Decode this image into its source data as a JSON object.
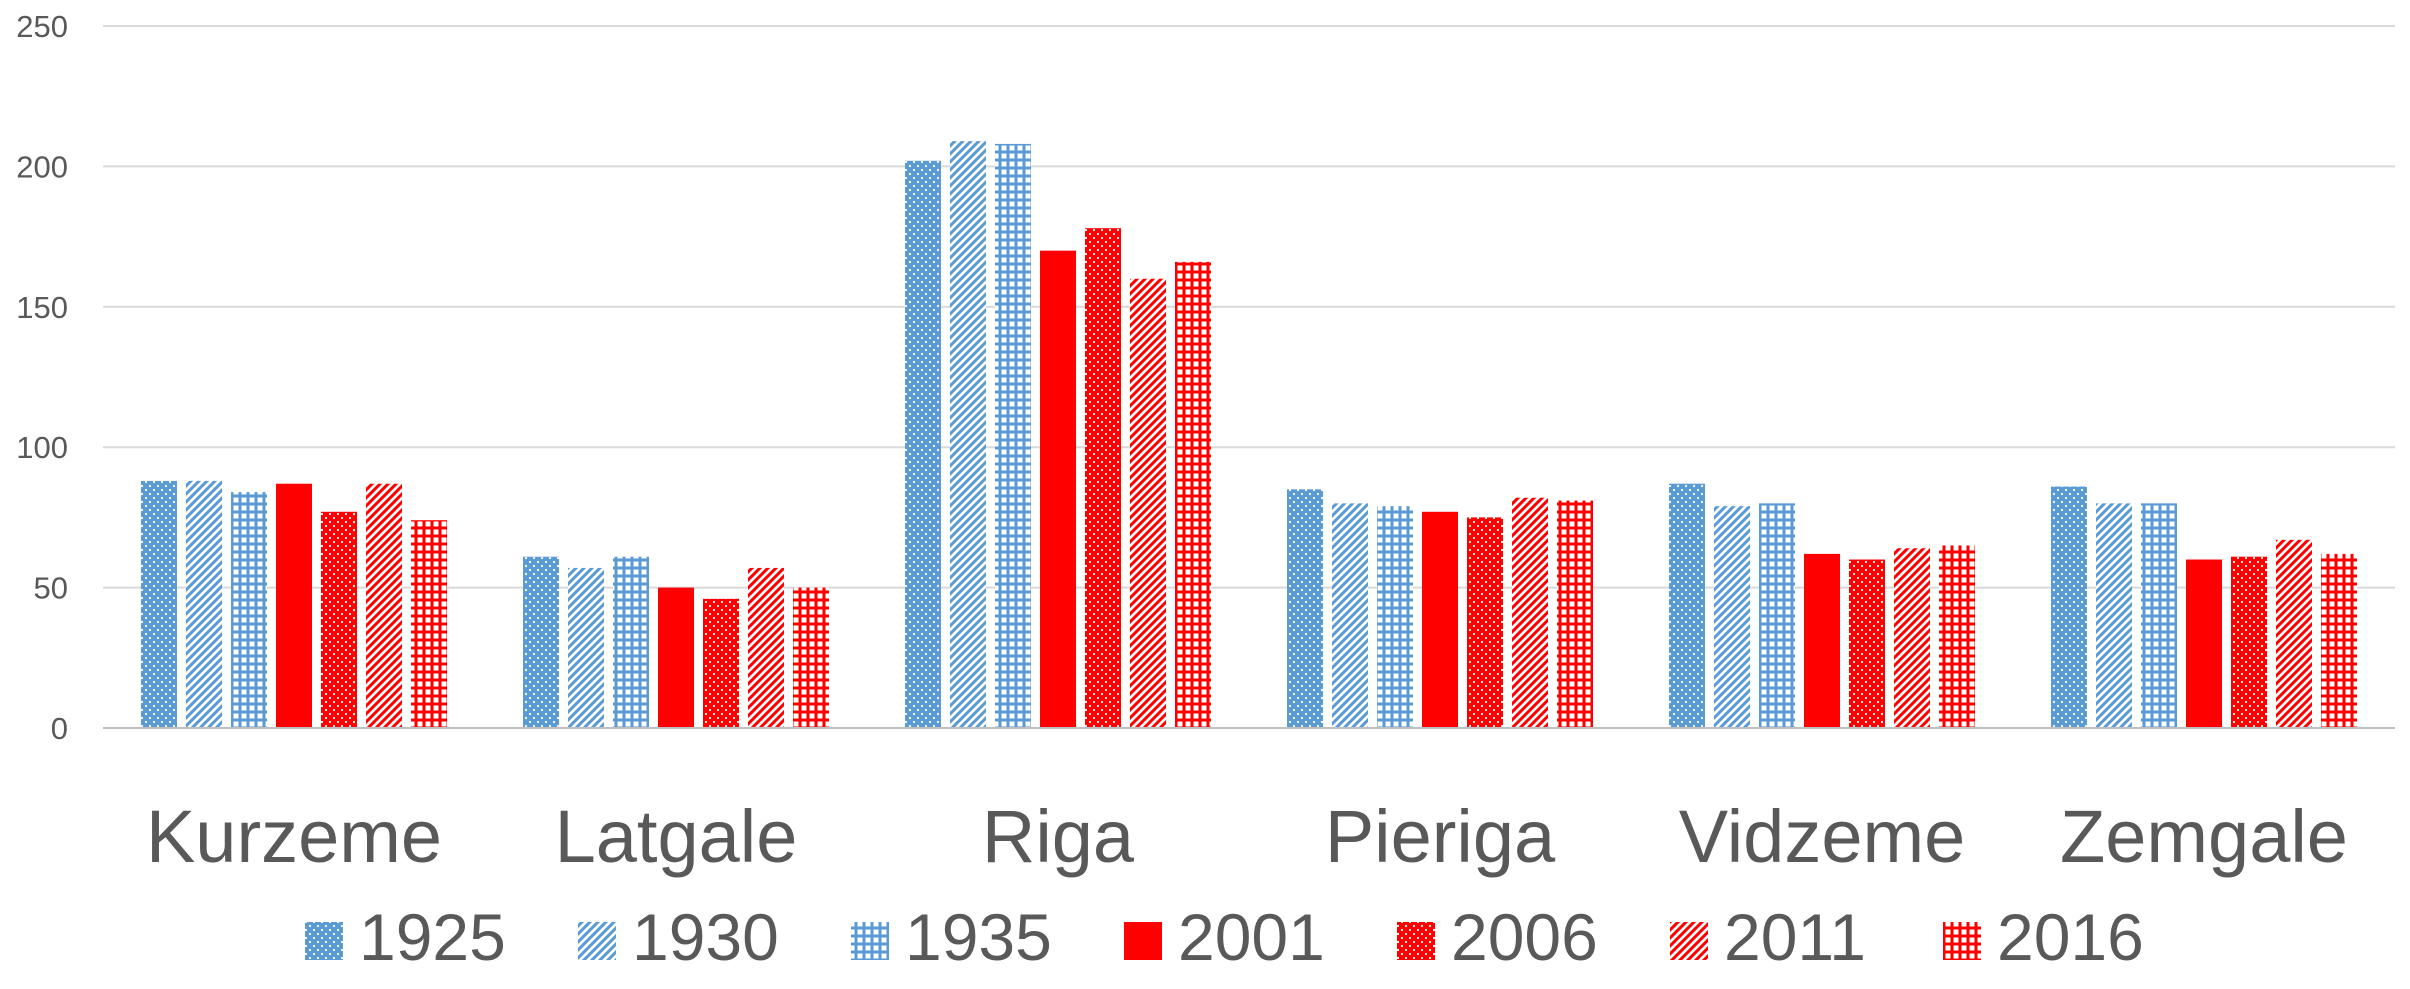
{
  "chart_data": {
    "type": "bar",
    "title": "",
    "xlabel": "",
    "ylabel": "",
    "ylim": [
      0,
      250
    ],
    "yticks": [
      0,
      50,
      100,
      150,
      200,
      250
    ],
    "grid": true,
    "legend_position": "bottom",
    "categories": [
      "Kurzeme",
      "Latgale",
      "Riga",
      "Pieriga",
      "Vidzeme",
      "Zemgale"
    ],
    "series": [
      {
        "name": "1925",
        "color": "#5B9BD5",
        "pattern": "dots",
        "values": [
          88,
          61,
          202,
          85,
          87,
          86
        ]
      },
      {
        "name": "1930",
        "color": "#5B9BD5",
        "pattern": "diagonal",
        "values": [
          88,
          57,
          209,
          80,
          79,
          80
        ]
      },
      {
        "name": "1935",
        "color": "#5B9BD5",
        "pattern": "grid",
        "values": [
          84,
          61,
          208,
          79,
          80,
          80
        ]
      },
      {
        "name": "2001",
        "color": "#FF0000",
        "pattern": "solid",
        "values": [
          87,
          50,
          170,
          77,
          62,
          60
        ]
      },
      {
        "name": "2006",
        "color": "#FF0000",
        "pattern": "dots",
        "values": [
          77,
          46,
          178,
          75,
          60,
          61
        ]
      },
      {
        "name": "2011",
        "color": "#FF0000",
        "pattern": "diagonal",
        "values": [
          87,
          57,
          160,
          82,
          64,
          67
        ]
      },
      {
        "name": "2016",
        "color": "#FF0000",
        "pattern": "grid",
        "values": [
          74,
          50,
          166,
          81,
          65,
          62
        ]
      }
    ]
  }
}
